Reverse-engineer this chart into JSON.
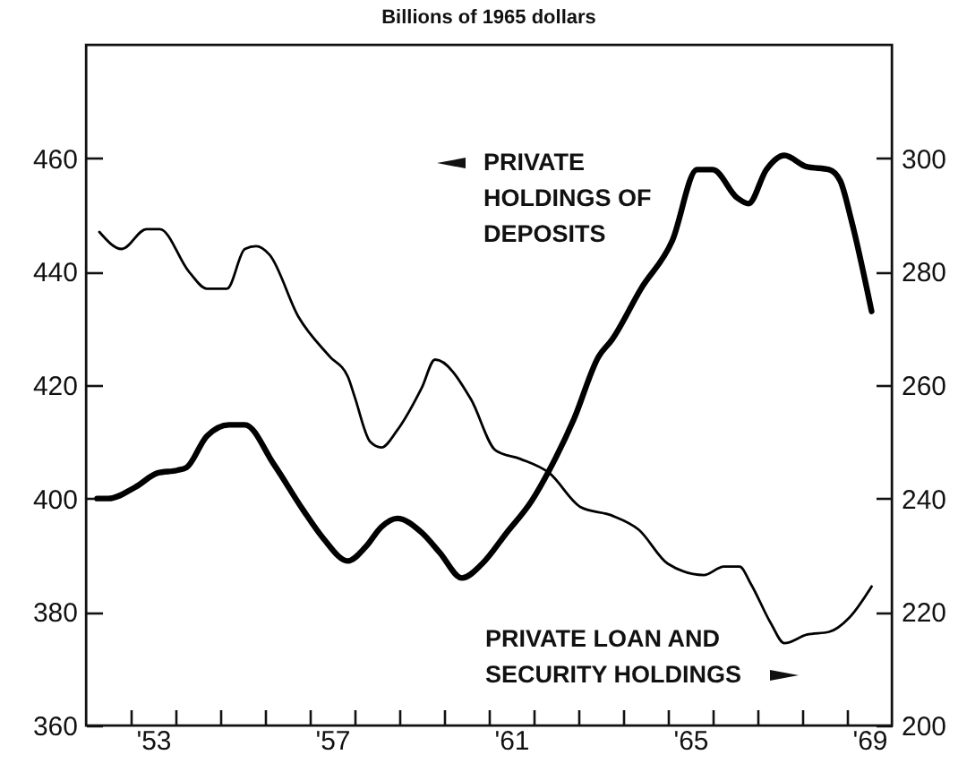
{
  "chart_data": {
    "type": "line",
    "title": "Billions of 1965 dollars",
    "xlim": [
      1951.5,
      1969.5
    ],
    "xticks": [
      {
        "value": 1952.5,
        "label": null
      },
      {
        "value": 1953,
        "label": "'53"
      },
      {
        "value": 1953.5,
        "label": null
      },
      {
        "value": 1954.5,
        "label": null
      },
      {
        "value": 1955.5,
        "label": null
      },
      {
        "value": 1956.5,
        "label": null
      },
      {
        "value": 1957,
        "label": "'57"
      },
      {
        "value": 1957.5,
        "label": null
      },
      {
        "value": 1958.5,
        "label": null
      },
      {
        "value": 1959.5,
        "label": null
      },
      {
        "value": 1960.5,
        "label": null
      },
      {
        "value": 1961,
        "label": "'61"
      },
      {
        "value": 1961.5,
        "label": null
      },
      {
        "value": 1962.5,
        "label": null
      },
      {
        "value": 1963.5,
        "label": null
      },
      {
        "value": 1964.5,
        "label": null
      },
      {
        "value": 1965,
        "label": "'65"
      },
      {
        "value": 1965.5,
        "label": null
      },
      {
        "value": 1966.5,
        "label": null
      },
      {
        "value": 1967.5,
        "label": null
      },
      {
        "value": 1968.5,
        "label": null
      },
      {
        "value": 1969,
        "label": "'69"
      }
    ],
    "ylim": [
      360,
      480
    ],
    "yticks": [
      360,
      380,
      400,
      420,
      440,
      460
    ],
    "y2lim": [
      200,
      320
    ],
    "y2ticks": [
      200,
      220,
      240,
      260,
      280,
      300
    ],
    "series": [
      {
        "name": "PRIVATE HOLDINGS OF DEPOSITS",
        "color": "#000000",
        "x": [
          1951.75,
          1952,
          1952.6,
          1953.1,
          1953.55,
          1953.75,
          1954.2,
          1954.7,
          1955.05,
          1955.7,
          1956.35,
          1956.8,
          1957.35,
          1957.75,
          1958.1,
          1958.45,
          1959,
          1959.4,
          1959.9,
          1960.35,
          1960.9,
          1961.45,
          1961.85,
          1962.4,
          1962.95,
          1963.25,
          1963.9,
          1964.6,
          1965.15,
          1965.5,
          1966.05,
          1966.3,
          1966.7,
          1967.1,
          1967.6,
          1968.1,
          1968.35,
          1968.6,
          1969.05
        ],
        "values": [
          400,
          400,
          402,
          404.5,
          405,
          405.5,
          411,
          413,
          413,
          406,
          398,
          393,
          389,
          391.5,
          395,
          396.5,
          394,
          390.5,
          386,
          388.5,
          394,
          399.5,
          405,
          414,
          425,
          428,
          437,
          445.5,
          458,
          458,
          453,
          452,
          458,
          460.5,
          458.5,
          458,
          456,
          449,
          433
        ]
      },
      {
        "name": "PRIVATE LOAN AND SECURITY HOLDINGS",
        "color": "#000000",
        "axis": "y2",
        "x": [
          1951.8,
          1952.3,
          1952.85,
          1953.15,
          1953.8,
          1954.2,
          1954.65,
          1955.05,
          1955.3,
          1955.6,
          1956.25,
          1956.95,
          1957.35,
          1957.5,
          1957.85,
          1958.1,
          1958.45,
          1959,
          1959.3,
          1960.1,
          1960.65,
          1961.2,
          1961.85,
          1962.55,
          1963.25,
          1963.85,
          1964.5,
          1965.3,
          1965.75,
          1966.1,
          1966.35,
          1966.8,
          1967.1,
          1967.6,
          1968.1,
          1968.55,
          1969.05
        ],
        "values": [
          287,
          284,
          287.5,
          287.5,
          280,
          277,
          277,
          284,
          284.5,
          283,
          272,
          265,
          261.5,
          258,
          250,
          249,
          252,
          259.5,
          264.5,
          257.5,
          248.5,
          247,
          244.5,
          238.5,
          237,
          234.5,
          228.5,
          226.5,
          228,
          228,
          225,
          218,
          214.5,
          216,
          216.5,
          219,
          224.5
        ]
      }
    ]
  }
}
